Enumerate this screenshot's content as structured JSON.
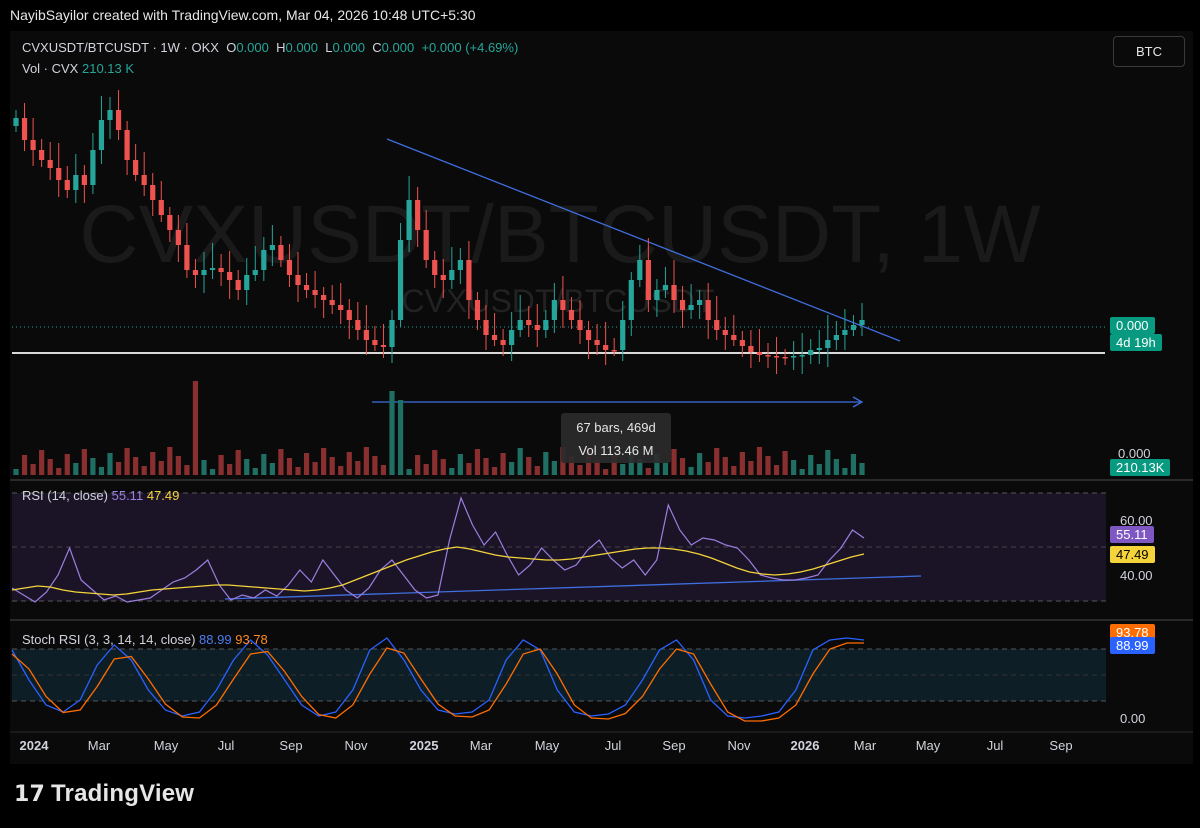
{
  "header": {
    "attribution": "NayibSayilor created with TradingView.com, Mar 04, 2026 10:48 UTC+5:30"
  },
  "symbol_bar": {
    "symbol": "CVXUSDT/BTCUSDT · 1W · OKX",
    "o_label": "O",
    "o_value": "0.000",
    "h_label": "H",
    "h_value": "0.000",
    "l_label": "L",
    "l_value": "0.000",
    "c_label": "C",
    "c_value": "0.000",
    "change": "+0.000 (+4.69%)",
    "volume_label": "Vol · CVX",
    "volume_value": "210.13 K",
    "currency_button": "BTC"
  },
  "watermark": {
    "big": "CVXUSDT/BTCUSDT, 1W",
    "small": "CVXUSDT/BTCUSDT"
  },
  "price_tags": {
    "last": "0.000",
    "countdown": "4d 19h",
    "zero": "0.000",
    "volume": "210.13K"
  },
  "measure_box": {
    "bars": "67 bars, 469d",
    "volume": "Vol 113.46 M"
  },
  "rsi": {
    "label": "RSI (14, close)",
    "rsi_value": "55.11",
    "ma_value": "47.49",
    "axis": [
      "60.00",
      "40.00"
    ]
  },
  "stoch": {
    "label": "Stoch RSI (3, 3, 14, 14, close)",
    "k_value": "88.99",
    "d_value": "93.78",
    "axis": [
      "0.00"
    ]
  },
  "time_axis": [
    {
      "label": "2024",
      "bold": true
    },
    {
      "label": "Mar"
    },
    {
      "label": "May"
    },
    {
      "label": "Jul"
    },
    {
      "label": "Sep"
    },
    {
      "label": "Nov"
    },
    {
      "label": "2025",
      "bold": true
    },
    {
      "label": "Mar"
    },
    {
      "label": "May"
    },
    {
      "label": "Jul"
    },
    {
      "label": "Sep"
    },
    {
      "label": "Nov"
    },
    {
      "label": "2026",
      "bold": true
    },
    {
      "label": "Mar"
    },
    {
      "label": "May"
    },
    {
      "label": "Jul"
    },
    {
      "label": "Sep"
    }
  ],
  "colors": {
    "up": "#26a69a",
    "down": "#ef5350",
    "rsi": "#9c7fe0",
    "rsi_ma": "#f5d33b",
    "k": "#2962ff",
    "d": "#ff6d00",
    "trend": "#3f6fe0"
  },
  "branding": {
    "logo_text": "TradingView",
    "logo_mark": "𝟭𝟳"
  },
  "chart_data": {
    "type": "candlestick",
    "title": "CVXUSDT/BTCUSDT · 1W · OKX",
    "x_labels": [
      "2024",
      "Mar",
      "May",
      "Jul",
      "Sep",
      "Nov",
      "2025",
      "Mar",
      "May",
      "Jul",
      "Sep",
      "Nov",
      "2026",
      "Mar",
      "May",
      "Jul",
      "Sep"
    ],
    "price_axis_visible": [
      "0.000"
    ],
    "last_change_percent": "+4.69%",
    "series": [
      {
        "name": "RSI (14, close)",
        "last_value": 55.11
      },
      {
        "name": "RSI MA",
        "last_value": 47.49
      },
      {
        "name": "Stoch RSI K",
        "last_value": 88.99
      },
      {
        "name": "Stoch RSI D",
        "last_value": 93.78
      },
      {
        "name": "Vol · CVX",
        "last_value": "210.13K"
      }
    ],
    "rsi_axis": [
      "60.00",
      "40.00"
    ],
    "stoch_axis": [
      "0.00"
    ]
  }
}
